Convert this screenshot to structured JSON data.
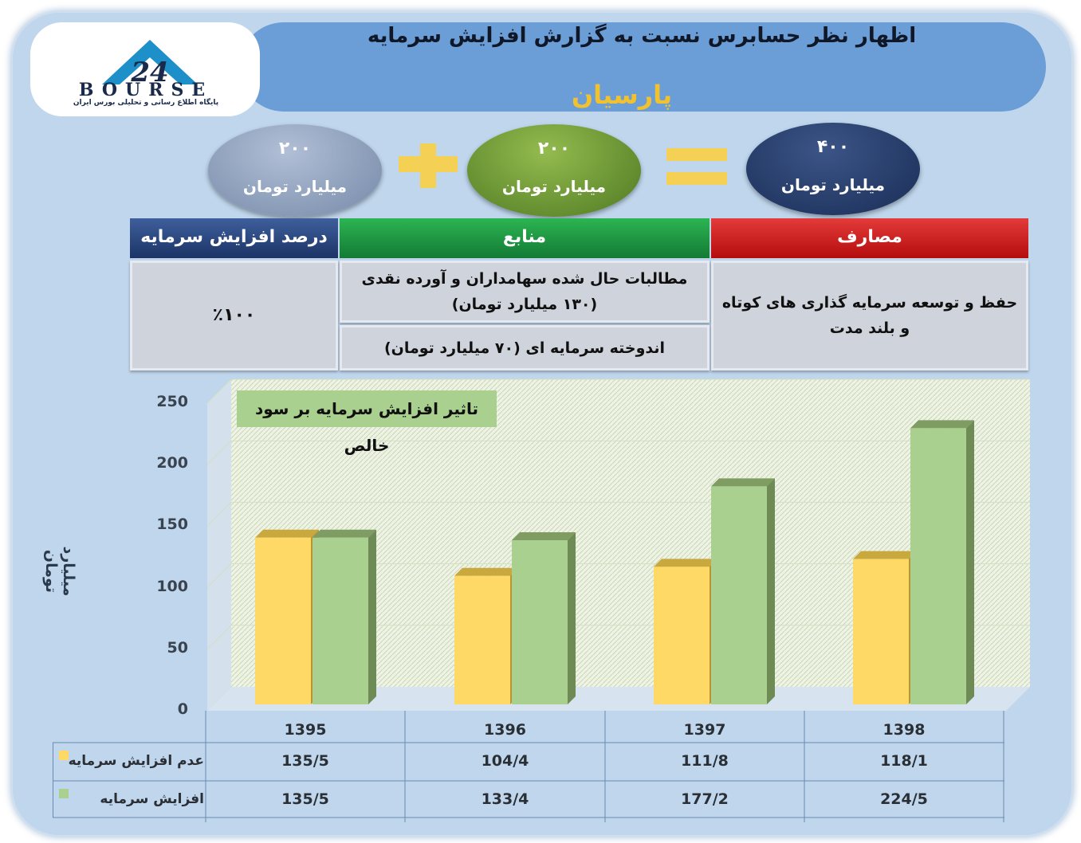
{
  "header": {
    "title": "اظهار نظر حسابرس نسبت به گزارش افزایش سرمایه",
    "subtitle": "پارسیان"
  },
  "logo": {
    "wordmark": "BOURSE",
    "number": "24",
    "tagline": "پایگاه اطلاع رسانی و تحلیلی بورس ایران"
  },
  "equation": {
    "left": {
      "value": "۲۰۰",
      "unit": "میلیارد تومان",
      "color": "#8a9ab8"
    },
    "middle": {
      "value": "۲۰۰",
      "unit": "میلیارد تومان",
      "color": "#6a9a34"
    },
    "right": {
      "value": "۴۰۰",
      "unit": "میلیارد تومان",
      "color": "#24396b"
    },
    "operator_color": "#f4d154"
  },
  "table": {
    "expenses_header": "مصارف",
    "sources_header": "منابع",
    "percent_header": "درصد افزایش سرمایه",
    "expense_text": "حفظ و توسعه سرمایه گذاری های کوتاه و بلند مدت",
    "source_1": "مطالبات حال شده سهامداران و آورده نقدی (۱۳۰ میلیارد تومان)",
    "source_2": "اندوخته سرمایه ای (۷۰ میلیارد تومان)",
    "percent_value": "٪۱۰۰"
  },
  "chart_data": {
    "type": "bar",
    "title": "تاثیر افزایش سرمایه بر سود خالص",
    "ylabel": "میلیارد تومان",
    "xlabel": "",
    "categories": [
      "1395",
      "1396",
      "1397",
      "1398"
    ],
    "ylim": [
      0,
      250
    ],
    "yticks": [
      "0",
      "50",
      "100",
      "150",
      "200",
      "250"
    ],
    "series": [
      {
        "name": "عدم افزایش سرمایه",
        "values": [
          135.5,
          104.4,
          111.8,
          118.1
        ],
        "labels": [
          "135/5",
          "104/4",
          "111/8",
          "118/1"
        ],
        "color": "#ffd966"
      },
      {
        "name": "افزایش سرمایه",
        "values": [
          135.5,
          133.4,
          177.2,
          224.5
        ],
        "labels": [
          "135/5",
          "133/4",
          "177/2",
          "224/5"
        ],
        "color": "#a9d08e"
      }
    ],
    "grid": false,
    "legend": "bottom-table"
  }
}
